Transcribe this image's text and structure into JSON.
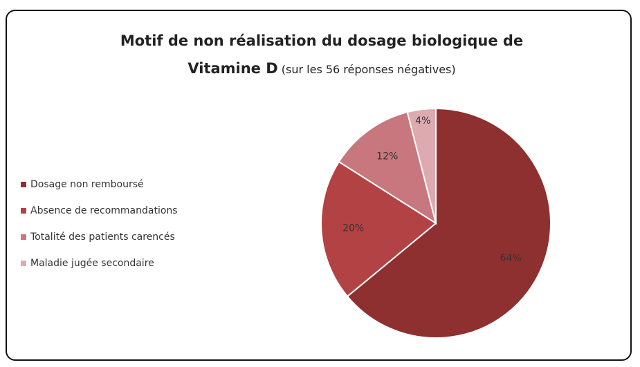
{
  "chart_data": {
    "type": "pie",
    "title": "Motif de non réalisation du dosage biologique de Vitamine D",
    "subtitle": "(sur les 56 réponses négatives)",
    "categories": [
      "Dosage non remboursé",
      "Absence de recommandations",
      "Totalité des patients carencés",
      "Maladie jugée secondaire"
    ],
    "values": [
      64,
      20,
      12,
      4
    ],
    "value_labels": [
      "64%",
      "20%",
      "12%",
      "4%"
    ],
    "colors": [
      "#8e2f30",
      "#b34244",
      "#c7777d",
      "#ddaab0"
    ],
    "legend": "left"
  }
}
